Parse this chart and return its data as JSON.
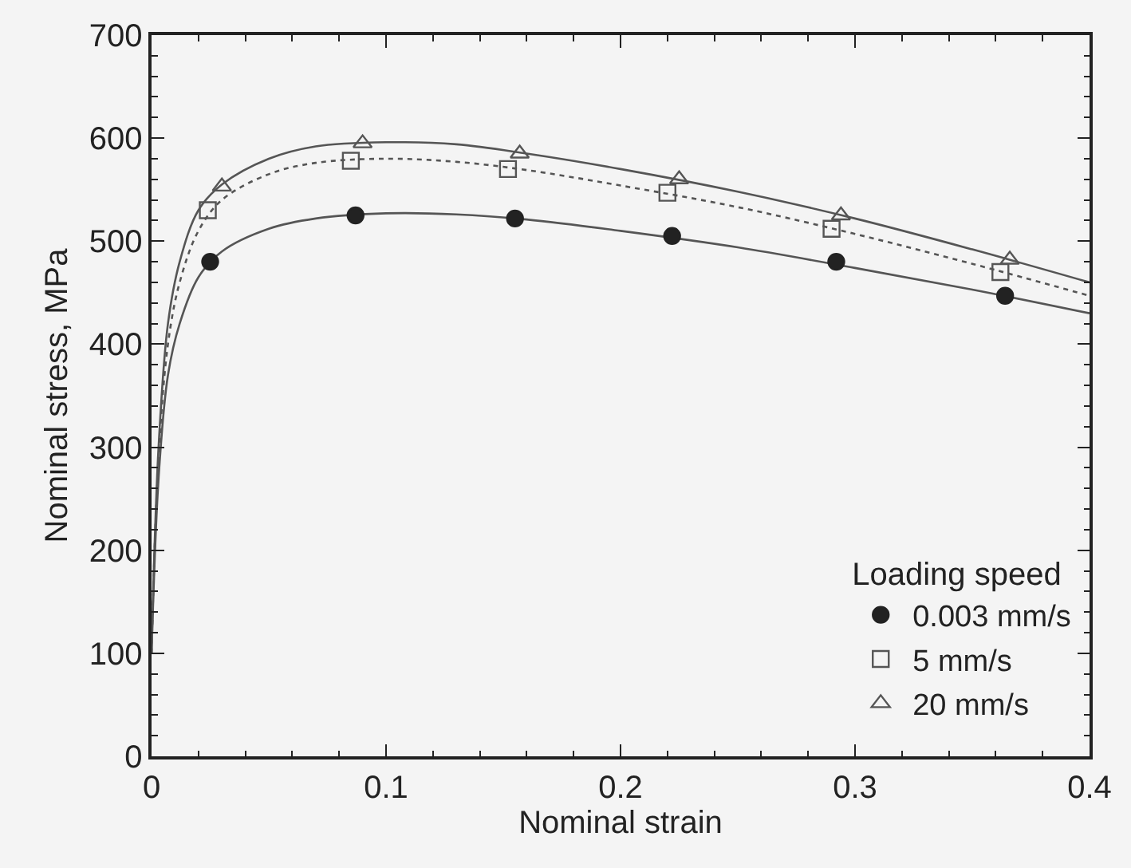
{
  "chart_data": {
    "type": "line",
    "xlabel": "Nominal strain",
    "ylabel": "Nominal stress, MPa",
    "legend_title": "Loading speed",
    "legend": "bottom right",
    "grid": false,
    "xlim": [
      0,
      0.4
    ],
    "ylim": [
      0,
      700
    ],
    "xticks": [
      0,
      {
        "value": 0.02,
        "label": null
      },
      {
        "value": 0.04,
        "label": null
      },
      {
        "value": 0.06,
        "label": null
      },
      {
        "value": 0.08,
        "label": null
      },
      0.1,
      {
        "value": 0.12,
        "label": null
      },
      {
        "value": 0.14,
        "label": null
      },
      {
        "value": 0.16,
        "label": null
      },
      {
        "value": 0.18,
        "label": null
      },
      0.2,
      {
        "value": 0.22,
        "label": null
      },
      {
        "value": 0.24,
        "label": null
      },
      {
        "value": 0.26,
        "label": null
      },
      {
        "value": 0.28,
        "label": null
      },
      0.3,
      {
        "value": 0.32,
        "label": null
      },
      {
        "value": 0.34,
        "label": null
      },
      {
        "value": 0.36,
        "label": null
      },
      {
        "value": 0.38,
        "label": null
      },
      0.4
    ],
    "yticks": [
      0,
      {
        "value": 20,
        "label": null
      },
      {
        "value": 40,
        "label": null
      },
      {
        "value": 60,
        "label": null
      },
      {
        "value": 80,
        "label": null
      },
      100,
      {
        "value": 120,
        "label": null
      },
      {
        "value": 140,
        "label": null
      },
      {
        "value": 160,
        "label": null
      },
      {
        "value": 180,
        "label": null
      },
      200,
      {
        "value": 220,
        "label": null
      },
      {
        "value": 240,
        "label": null
      },
      {
        "value": 260,
        "label": null
      },
      {
        "value": 280,
        "label": null
      },
      300,
      {
        "value": 320,
        "label": null
      },
      {
        "value": 340,
        "label": null
      },
      {
        "value": 360,
        "label": null
      },
      {
        "value": 380,
        "label": null
      },
      400,
      {
        "value": 420,
        "label": null
      },
      {
        "value": 440,
        "label": null
      },
      {
        "value": 460,
        "label": null
      },
      {
        "value": 480,
        "label": null
      },
      500,
      {
        "value": 520,
        "label": null
      },
      {
        "value": 540,
        "label": null
      },
      {
        "value": 560,
        "label": null
      },
      {
        "value": 580,
        "label": null
      },
      600,
      {
        "value": 620,
        "label": null
      },
      {
        "value": 640,
        "label": null
      },
      {
        "value": 660,
        "label": null
      },
      {
        "value": 680,
        "label": null
      },
      700
    ],
    "series": [
      {
        "color": "#555555",
        "line_style": "solid",
        "marker": "none",
        "x": [
          0,
          0.003,
          0.007,
          0.012,
          0.02,
          0.03,
          0.05,
          0.07,
          0.1,
          0.13,
          0.16,
          0.2,
          0.25,
          0.3,
          0.35,
          0.4
        ],
        "values": [
          100,
          270,
          370,
          420,
          465,
          490,
          512,
          522,
          527,
          526,
          521,
          510,
          494,
          474,
          453,
          430
        ]
      },
      {
        "color": "#555555",
        "line_style": "dotted",
        "marker": "none",
        "x": [
          0,
          0.003,
          0.007,
          0.012,
          0.02,
          0.03,
          0.05,
          0.07,
          0.1,
          0.13,
          0.16,
          0.2,
          0.25,
          0.3,
          0.35,
          0.4
        ],
        "values": [
          100,
          290,
          400,
          460,
          510,
          540,
          565,
          576,
          580,
          577,
          569,
          554,
          533,
          507,
          478,
          447
        ]
      },
      {
        "color": "#555555",
        "line_style": "solid",
        "marker": "none",
        "x": [
          0,
          0.003,
          0.007,
          0.012,
          0.02,
          0.03,
          0.05,
          0.07,
          0.1,
          0.13,
          0.16,
          0.2,
          0.25,
          0.3,
          0.35,
          0.4
        ],
        "values": [
          100,
          300,
          420,
          480,
          530,
          555,
          580,
          592,
          596,
          594,
          585,
          570,
          548,
          522,
          492,
          460
        ]
      },
      {
        "type": "scatter",
        "name": "0.003 mm/s",
        "color": "#222222",
        "marker": "circle",
        "x": [
          0.025,
          0.087,
          0.155,
          0.222,
          0.292,
          0.364
        ],
        "values": [
          480,
          525,
          522,
          505,
          480,
          447
        ]
      },
      {
        "type": "scatter",
        "name": "5 mm/s",
        "color": "#555555",
        "marker": "square-open",
        "x": [
          0.024,
          0.085,
          0.152,
          0.22,
          0.29,
          0.362
        ],
        "values": [
          530,
          578,
          570,
          547,
          512,
          470
        ]
      },
      {
        "type": "scatter",
        "name": "20 mm/s",
        "color": "#555555",
        "marker": "triangle-open",
        "x": [
          0.03,
          0.09,
          0.157,
          0.225,
          0.294,
          0.366
        ],
        "values": [
          553,
          595,
          585,
          560,
          525,
          482
        ]
      }
    ]
  }
}
